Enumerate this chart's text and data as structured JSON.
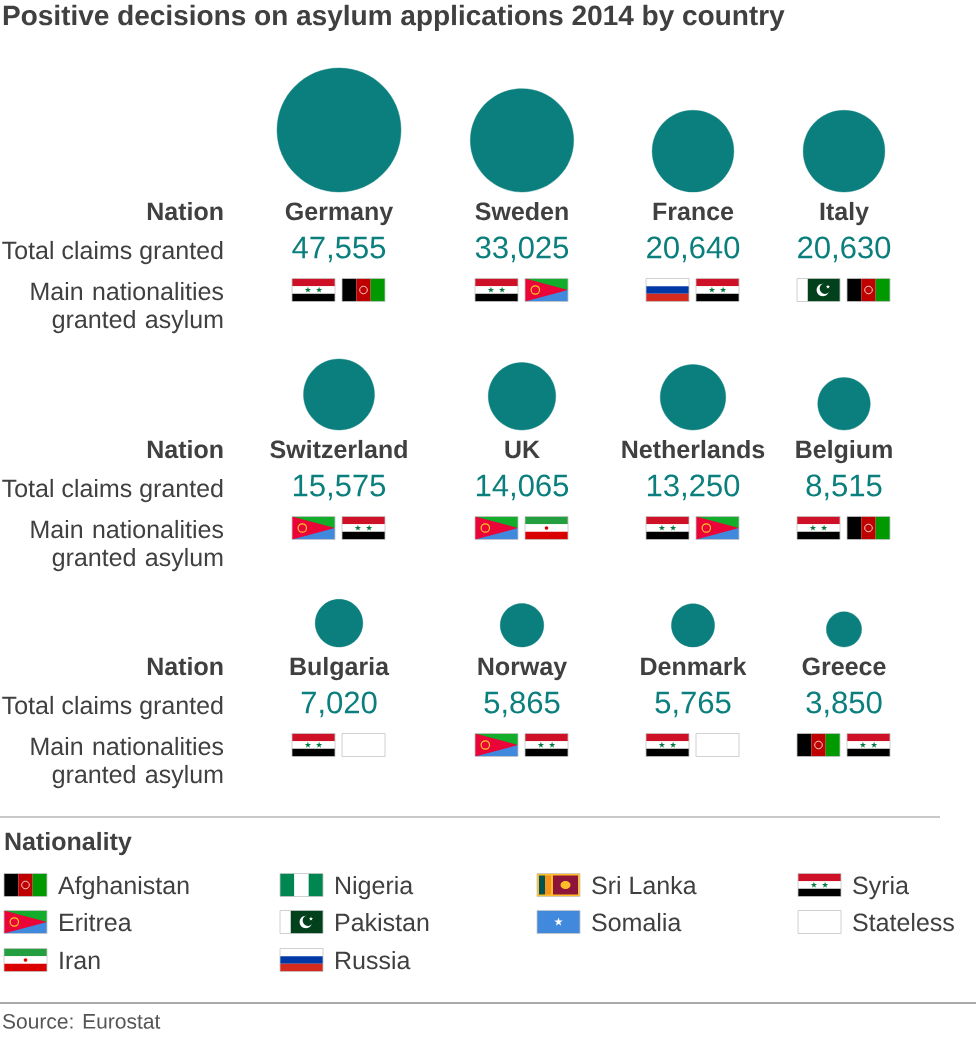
{
  "chart_data": {
    "type": "other",
    "title": "Positive decisions on asylum applications 2014 by country",
    "categories": [
      "Germany",
      "Sweden",
      "France",
      "Italy",
      "Switzerland",
      "UK",
      "Netherlands",
      "Belgium",
      "Bulgaria",
      "Norway",
      "Denmark",
      "Greece"
    ],
    "values": [
      47555,
      33025,
      20640,
      20630,
      15575,
      14065,
      13250,
      8515,
      7020,
      5865,
      5765,
      3850
    ],
    "value_labels": [
      "47,555",
      "33,025",
      "20,640",
      "20,630",
      "15,575",
      "14,065",
      "13,250",
      "8,515",
      "7,020",
      "5,865",
      "5,765",
      "3,850"
    ],
    "color": "#0b7f7d",
    "legend_title": "Nationality",
    "annotations": [
      "Nation",
      "Total claims granted",
      "Main nationalities granted asylum",
      "Afghanistan",
      "Eritrea",
      "Iran",
      "Nigeria",
      "Pakistan",
      "Russia",
      "Sri Lanka",
      "Somalia",
      "Syria",
      "Stateless",
      "Source: Eurostat"
    ]
  }
}
